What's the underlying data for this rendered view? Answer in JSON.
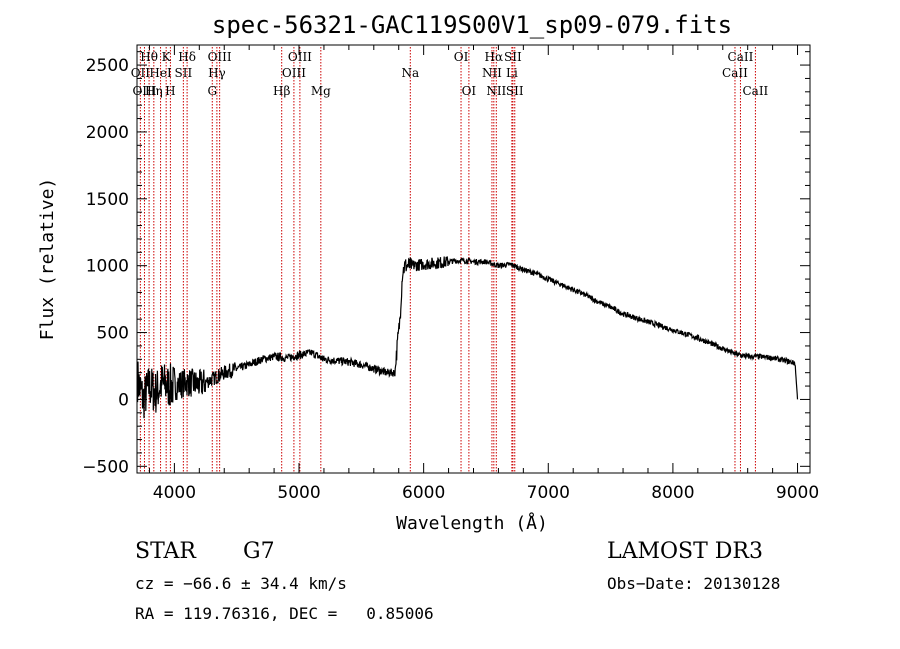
{
  "chart_data": {
    "type": "line",
    "title": "spec-56321-GAC119S00V1_sp09-079.fits",
    "xlabel": "Wavelength (Å)",
    "ylabel": "Flux (relative)",
    "xlim": [
      3700,
      9100
    ],
    "ylim": [
      -550,
      2650
    ],
    "xticks": [
      4000,
      5000,
      6000,
      7000,
      8000,
      9000
    ],
    "xtick_labels": [
      "4000",
      "5000",
      "6000",
      "7000",
      "8000",
      "9000"
    ],
    "yticks": [
      -500,
      0,
      500,
      1000,
      1500,
      2000,
      2500
    ],
    "ytick_labels": [
      "−500",
      "0",
      "500",
      "1000",
      "1500",
      "2000",
      "2500"
    ],
    "spectrum_anchors": [
      {
        "x": 3705,
        "y": 150
      },
      {
        "x": 3750,
        "y": 0
      },
      {
        "x": 3800,
        "y": 100
      },
      {
        "x": 3850,
        "y": 50
      },
      {
        "x": 3900,
        "y": 120
      },
      {
        "x": 3950,
        "y": 100
      },
      {
        "x": 4000,
        "y": 100
      },
      {
        "x": 4100,
        "y": 130
      },
      {
        "x": 4200,
        "y": 110
      },
      {
        "x": 4300,
        "y": 150
      },
      {
        "x": 4400,
        "y": 200
      },
      {
        "x": 4500,
        "y": 230
      },
      {
        "x": 4600,
        "y": 260
      },
      {
        "x": 4700,
        "y": 300
      },
      {
        "x": 4800,
        "y": 320
      },
      {
        "x": 4900,
        "y": 310
      },
      {
        "x": 5000,
        "y": 330
      },
      {
        "x": 5100,
        "y": 350
      },
      {
        "x": 5200,
        "y": 300
      },
      {
        "x": 5300,
        "y": 290
      },
      {
        "x": 5400,
        "y": 280
      },
      {
        "x": 5500,
        "y": 260
      },
      {
        "x": 5600,
        "y": 230
      },
      {
        "x": 5700,
        "y": 200
      },
      {
        "x": 5770,
        "y": 200
      },
      {
        "x": 5790,
        "y": 420
      },
      {
        "x": 5810,
        "y": 600
      },
      {
        "x": 5830,
        "y": 950
      },
      {
        "x": 5850,
        "y": 1000
      },
      {
        "x": 5900,
        "y": 1000
      },
      {
        "x": 6000,
        "y": 1010
      },
      {
        "x": 6100,
        "y": 1020
      },
      {
        "x": 6200,
        "y": 1030
      },
      {
        "x": 6300,
        "y": 1040
      },
      {
        "x": 6400,
        "y": 1030
      },
      {
        "x": 6500,
        "y": 1030
      },
      {
        "x": 6600,
        "y": 1000
      },
      {
        "x": 6700,
        "y": 1010
      },
      {
        "x": 6800,
        "y": 970
      },
      {
        "x": 6900,
        "y": 940
      },
      {
        "x": 7000,
        "y": 900
      },
      {
        "x": 7100,
        "y": 860
      },
      {
        "x": 7200,
        "y": 820
      },
      {
        "x": 7300,
        "y": 780
      },
      {
        "x": 7400,
        "y": 730
      },
      {
        "x": 7500,
        "y": 690
      },
      {
        "x": 7600,
        "y": 640
      },
      {
        "x": 7700,
        "y": 610
      },
      {
        "x": 7800,
        "y": 580
      },
      {
        "x": 7900,
        "y": 550
      },
      {
        "x": 8000,
        "y": 520
      },
      {
        "x": 8100,
        "y": 490
      },
      {
        "x": 8200,
        "y": 460
      },
      {
        "x": 8300,
        "y": 420
      },
      {
        "x": 8400,
        "y": 380
      },
      {
        "x": 8500,
        "y": 340
      },
      {
        "x": 8600,
        "y": 320
      },
      {
        "x": 8700,
        "y": 320
      },
      {
        "x": 8800,
        "y": 310
      },
      {
        "x": 8900,
        "y": 290
      },
      {
        "x": 8980,
        "y": 270
      },
      {
        "x": 9000,
        "y": 0
      }
    ],
    "spectral_lines": [
      {
        "label": "Hθ",
        "wave": 3797,
        "row": 0
      },
      {
        "label": "OII",
        "wave": 3727,
        "row": 1
      },
      {
        "label": "OIII",
        "wave": 3760,
        "row": 2
      },
      {
        "label": "Hη",
        "wave": 3835,
        "row": 2
      },
      {
        "label": "HeI",
        "wave": 3889,
        "row": 1
      },
      {
        "label": "K",
        "wave": 3934,
        "row": 0
      },
      {
        "label": "H",
        "wave": 3968,
        "row": 2
      },
      {
        "label": "SII",
        "wave": 4072,
        "row": 1
      },
      {
        "label": "Hδ",
        "wave": 4102,
        "row": 0
      },
      {
        "label": "G",
        "wave": 4304,
        "row": 2
      },
      {
        "label": "Hγ",
        "wave": 4341,
        "row": 1
      },
      {
        "label": "OIII",
        "wave": 4363,
        "row": 0
      },
      {
        "label": "Hβ",
        "wave": 4861,
        "row": 2
      },
      {
        "label": "OIII",
        "wave": 4959,
        "row": 1
      },
      {
        "label": "OIII",
        "wave": 5007,
        "row": 0
      },
      {
        "label": "Mg",
        "wave": 5175,
        "row": 2
      },
      {
        "label": "Na",
        "wave": 5893,
        "row": 1
      },
      {
        "label": "OI",
        "wave": 6300,
        "row": 0
      },
      {
        "label": "OI",
        "wave": 6363,
        "row": 2
      },
      {
        "label": "NII",
        "wave": 6548,
        "row": 1
      },
      {
        "label": "Hα",
        "wave": 6563,
        "row": 0
      },
      {
        "label": "NII",
        "wave": 6583,
        "row": 2
      },
      {
        "label": "Li",
        "wave": 6708,
        "row": 1
      },
      {
        "label": "SII",
        "wave": 6716,
        "row": 0
      },
      {
        "label": "SII",
        "wave": 6731,
        "row": 2
      },
      {
        "label": "CaII",
        "wave": 8498,
        "row": 1
      },
      {
        "label": "CaII",
        "wave": 8542,
        "row": 0
      },
      {
        "label": "CaII",
        "wave": 8662,
        "row": 2
      }
    ]
  },
  "footer": {
    "classification": "STAR",
    "subclass": "G7",
    "survey": "LAMOST DR3",
    "cz": "cz = −66.6 ± 34.4 km/s",
    "obs_date": "Obs−Date: 20130128",
    "coords": "RA = 119.76316, DEC =   0.85006"
  },
  "colors": {
    "line_marker": "#cc0000",
    "spectrum": "#000000",
    "axes": "#000000"
  }
}
